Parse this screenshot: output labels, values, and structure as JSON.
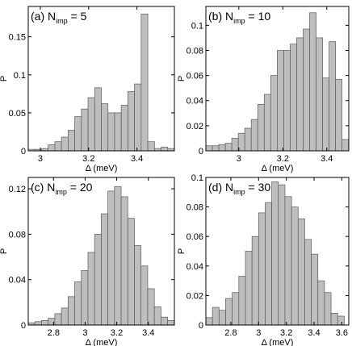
{
  "chart_data": [
    {
      "type": "bar",
      "panel_label": "(a)",
      "title_main": "N",
      "title_sub": "imp",
      "title_value": "= 5",
      "xlabel": "Δ  (meV)",
      "ylabel": "P",
      "xlim": [
        2.95,
        3.555
      ],
      "ylim": [
        0,
        0.19
      ],
      "xticks": [
        "3",
        "3.2",
        "3.4"
      ],
      "xtick_values": [
        3.0,
        3.2,
        3.4
      ],
      "yticks": [
        "0",
        "0.05",
        "0.1",
        "0.15"
      ],
      "ytick_values": [
        0,
        0.05,
        0.1,
        0.15
      ],
      "bin_start": 2.95,
      "bin_width": 0.0275,
      "values": [
        0.002,
        0.002,
        0.003,
        0.008,
        0.012,
        0.018,
        0.027,
        0.045,
        0.055,
        0.07,
        0.083,
        0.062,
        0.05,
        0.05,
        0.06,
        0.078,
        0.088,
        0.18,
        0.012,
        0.003,
        0.005,
        0.003
      ]
    },
    {
      "type": "bar",
      "panel_label": "(b)",
      "title_main": "N",
      "title_sub": "imp",
      "title_value": "= 10",
      "xlabel": "Δ  (meV)",
      "ylabel": "P",
      "xlim": [
        2.85,
        3.5
      ],
      "ylim": [
        0,
        0.115
      ],
      "xticks": [
        "3",
        "3.2",
        "3.4"
      ],
      "xtick_values": [
        3.0,
        3.2,
        3.4
      ],
      "yticks": [
        "0",
        "0.02",
        "0.04",
        "0.06",
        "0.08",
        "0.1"
      ],
      "ytick_values": [
        0,
        0.02,
        0.04,
        0.06,
        0.08,
        0.1
      ],
      "bin_start": 2.85,
      "bin_width": 0.0295,
      "values": [
        0.004,
        0.004,
        0.005,
        0.006,
        0.01,
        0.014,
        0.018,
        0.025,
        0.037,
        0.045,
        0.06,
        0.08,
        0.08,
        0.085,
        0.09,
        0.097,
        0.11,
        0.09,
        0.058,
        0.087,
        0.057,
        0.009
      ]
    },
    {
      "type": "bar",
      "panel_label": "(c)",
      "title_main": "N",
      "title_sub": "imp",
      "title_value": "= 20",
      "xlabel": "Δ  (meV)",
      "ylabel": "P",
      "xlim": [
        2.64,
        3.565
      ],
      "ylim": [
        0,
        0.13
      ],
      "xticks": [
        "2.8",
        "3",
        "3.2",
        "3.4"
      ],
      "xtick_values": [
        2.8,
        3.0,
        3.2,
        3.4
      ],
      "yticks": [
        "0",
        "0.04",
        "0.08",
        "0.12"
      ],
      "ytick_values": [
        0,
        0.04,
        0.08,
        0.12
      ],
      "bin_start": 2.64,
      "bin_width": 0.042,
      "values": [
        0.002,
        0.003,
        0.004,
        0.006,
        0.01,
        0.015,
        0.025,
        0.038,
        0.048,
        0.064,
        0.08,
        0.098,
        0.118,
        0.122,
        0.113,
        0.094,
        0.07,
        0.052,
        0.032,
        0.016,
        0.007,
        0.004
      ]
    },
    {
      "type": "bar",
      "panel_label": "(d)",
      "title_main": "N",
      "title_sub": "imp",
      "title_value": "= 30",
      "xlabel": "Δ  (meV)",
      "ylabel": "P",
      "xlim": [
        2.62,
        3.65
      ],
      "ylim": [
        0,
        0.1
      ],
      "xticks": [
        "2.8",
        "3",
        "3.2",
        "3.4",
        "3.6"
      ],
      "xtick_values": [
        2.8,
        3.0,
        3.2,
        3.4,
        3.6
      ],
      "yticks": [
        "0",
        "0.02",
        "0.04",
        "0.06",
        "0.08",
        "0.1"
      ],
      "ytick_values": [
        0,
        0.02,
        0.04,
        0.06,
        0.08,
        0.1
      ],
      "bin_start": 2.62,
      "bin_width": 0.0475,
      "values": [
        0.005,
        0.012,
        0.01,
        0.018,
        0.022,
        0.033,
        0.05,
        0.06,
        0.076,
        0.083,
        0.097,
        0.095,
        0.087,
        0.08,
        0.072,
        0.058,
        0.048,
        0.03,
        0.022,
        0.008,
        0.006
      ]
    }
  ]
}
